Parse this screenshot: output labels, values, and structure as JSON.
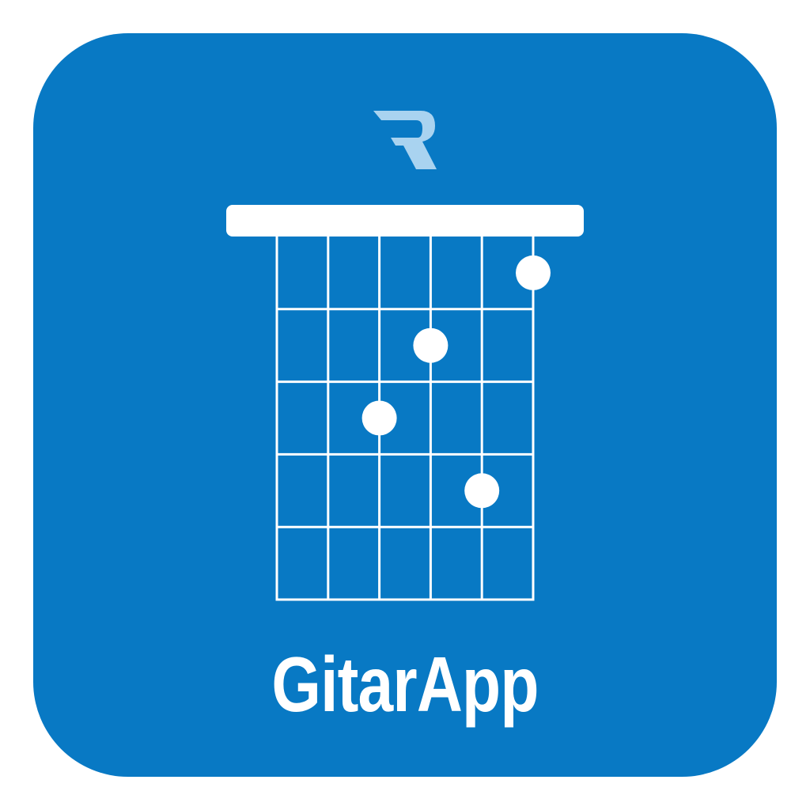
{
  "app": {
    "name": "GitarApp",
    "brand_color": "#0879c4",
    "foreground_color": "#ffffff",
    "logo_color": "#a9d3f0",
    "logo_icon": "r-logo-icon"
  },
  "chord": {
    "strings": 6,
    "frets": 5,
    "fingers": [
      {
        "string": 6,
        "fret": 1
      },
      {
        "string": 4,
        "fret": 2
      },
      {
        "string": 3,
        "fret": 3
      },
      {
        "string": 5,
        "fret": 4
      }
    ]
  }
}
